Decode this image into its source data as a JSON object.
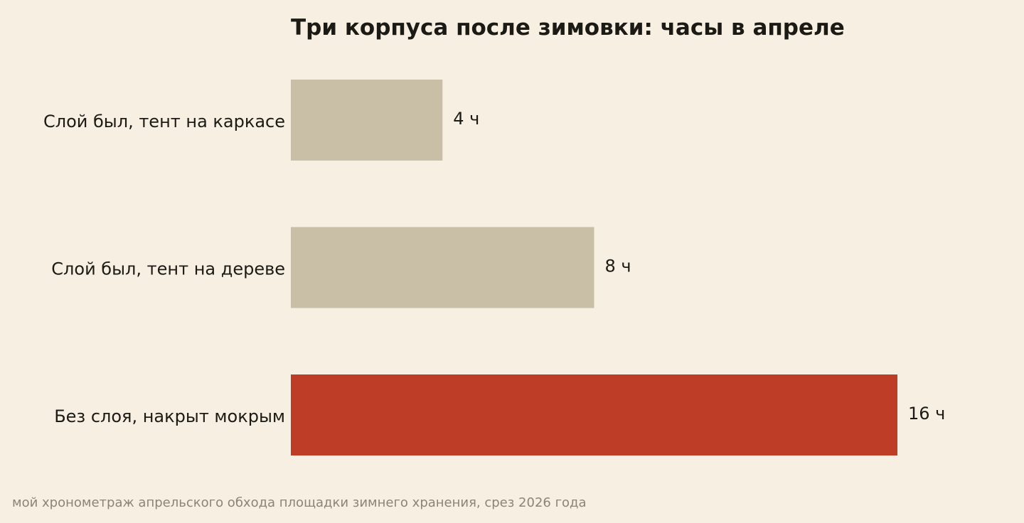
{
  "chart_data": {
    "type": "bar",
    "orientation": "horizontal",
    "title": "Три корпуса после зимовки: часы в апреле",
    "categories": [
      "Слой был, тент на каркасе",
      "Слой был, тент на дереве",
      "Без слоя, накрыт мокрым"
    ],
    "values": [
      4,
      8,
      16
    ],
    "value_labels": [
      "4 ч",
      "8 ч",
      "16 ч"
    ],
    "unit": "ч",
    "xlim": [
      0,
      16
    ],
    "grid": false,
    "legend": "none",
    "bar_colors": [
      "#c9bfa7",
      "#c9bfa7",
      "#bd3d27"
    ],
    "source": "мой хронометраж апрельского обхода площадки зимнего хранения, срез 2026 года"
  }
}
